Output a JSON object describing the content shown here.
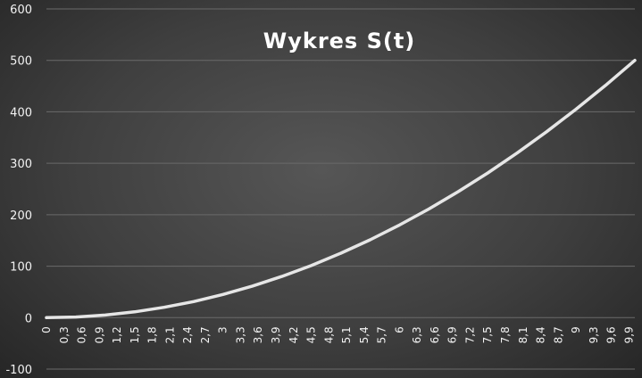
{
  "chart_data": {
    "type": "line",
    "title": "Wykres S(t)",
    "xlabel": "",
    "ylabel": "",
    "ylim": [
      -100,
      600
    ],
    "yticks": [
      "-100",
      "0",
      "100",
      "200",
      "300",
      "400",
      "500",
      "600"
    ],
    "ytick_values": [
      -100,
      0,
      100,
      200,
      300,
      400,
      500,
      600
    ],
    "grid": true,
    "legend": "none",
    "x_tick_labels": [
      "0",
      "0,3",
      "0,6",
      "0,9",
      "1,2",
      "1,5",
      "1,8",
      "2,1",
      "2,4",
      "2,7",
      "3",
      "3,3",
      "3,6",
      "3,9",
      "4,2",
      "4,5",
      "4,8",
      "5,1",
      "5,4",
      "5,7",
      "6",
      "6,3",
      "6,6",
      "6,9",
      "7,2",
      "7,5",
      "7,8",
      "8,1",
      "8,4",
      "8,7",
      "9",
      "9,3",
      "9,6",
      "9,9"
    ],
    "x_tick_values": [
      0,
      0.3,
      0.6,
      0.9,
      1.2,
      1.5,
      1.8,
      2.1,
      2.4,
      2.7,
      3,
      3.3,
      3.6,
      3.9,
      4.2,
      4.5,
      4.8,
      5.1,
      5.4,
      5.7,
      6,
      6.3,
      6.6,
      6.9,
      7.2,
      7.5,
      7.8,
      8.1,
      8.4,
      8.7,
      9,
      9.3,
      9.6,
      9.9
    ],
    "x_range": [
      0,
      10
    ],
    "series": [
      {
        "x": [
          0,
          0.5,
          1,
          1.5,
          2,
          2.5,
          3,
          3.5,
          4,
          4.5,
          5,
          5.5,
          6,
          6.5,
          7,
          7.5,
          8,
          8.5,
          9,
          9.5,
          10
        ],
        "values": [
          0,
          1.25,
          5,
          11.25,
          20,
          31.25,
          45,
          61.25,
          80,
          101.25,
          125,
          151.25,
          180,
          211.25,
          245,
          281.25,
          320,
          361.25,
          405,
          451.25,
          500
        ]
      }
    ],
    "colors": {
      "line": "#e6e6e6",
      "grid": "#6a6a6a",
      "text": "#f2f2f2"
    }
  }
}
